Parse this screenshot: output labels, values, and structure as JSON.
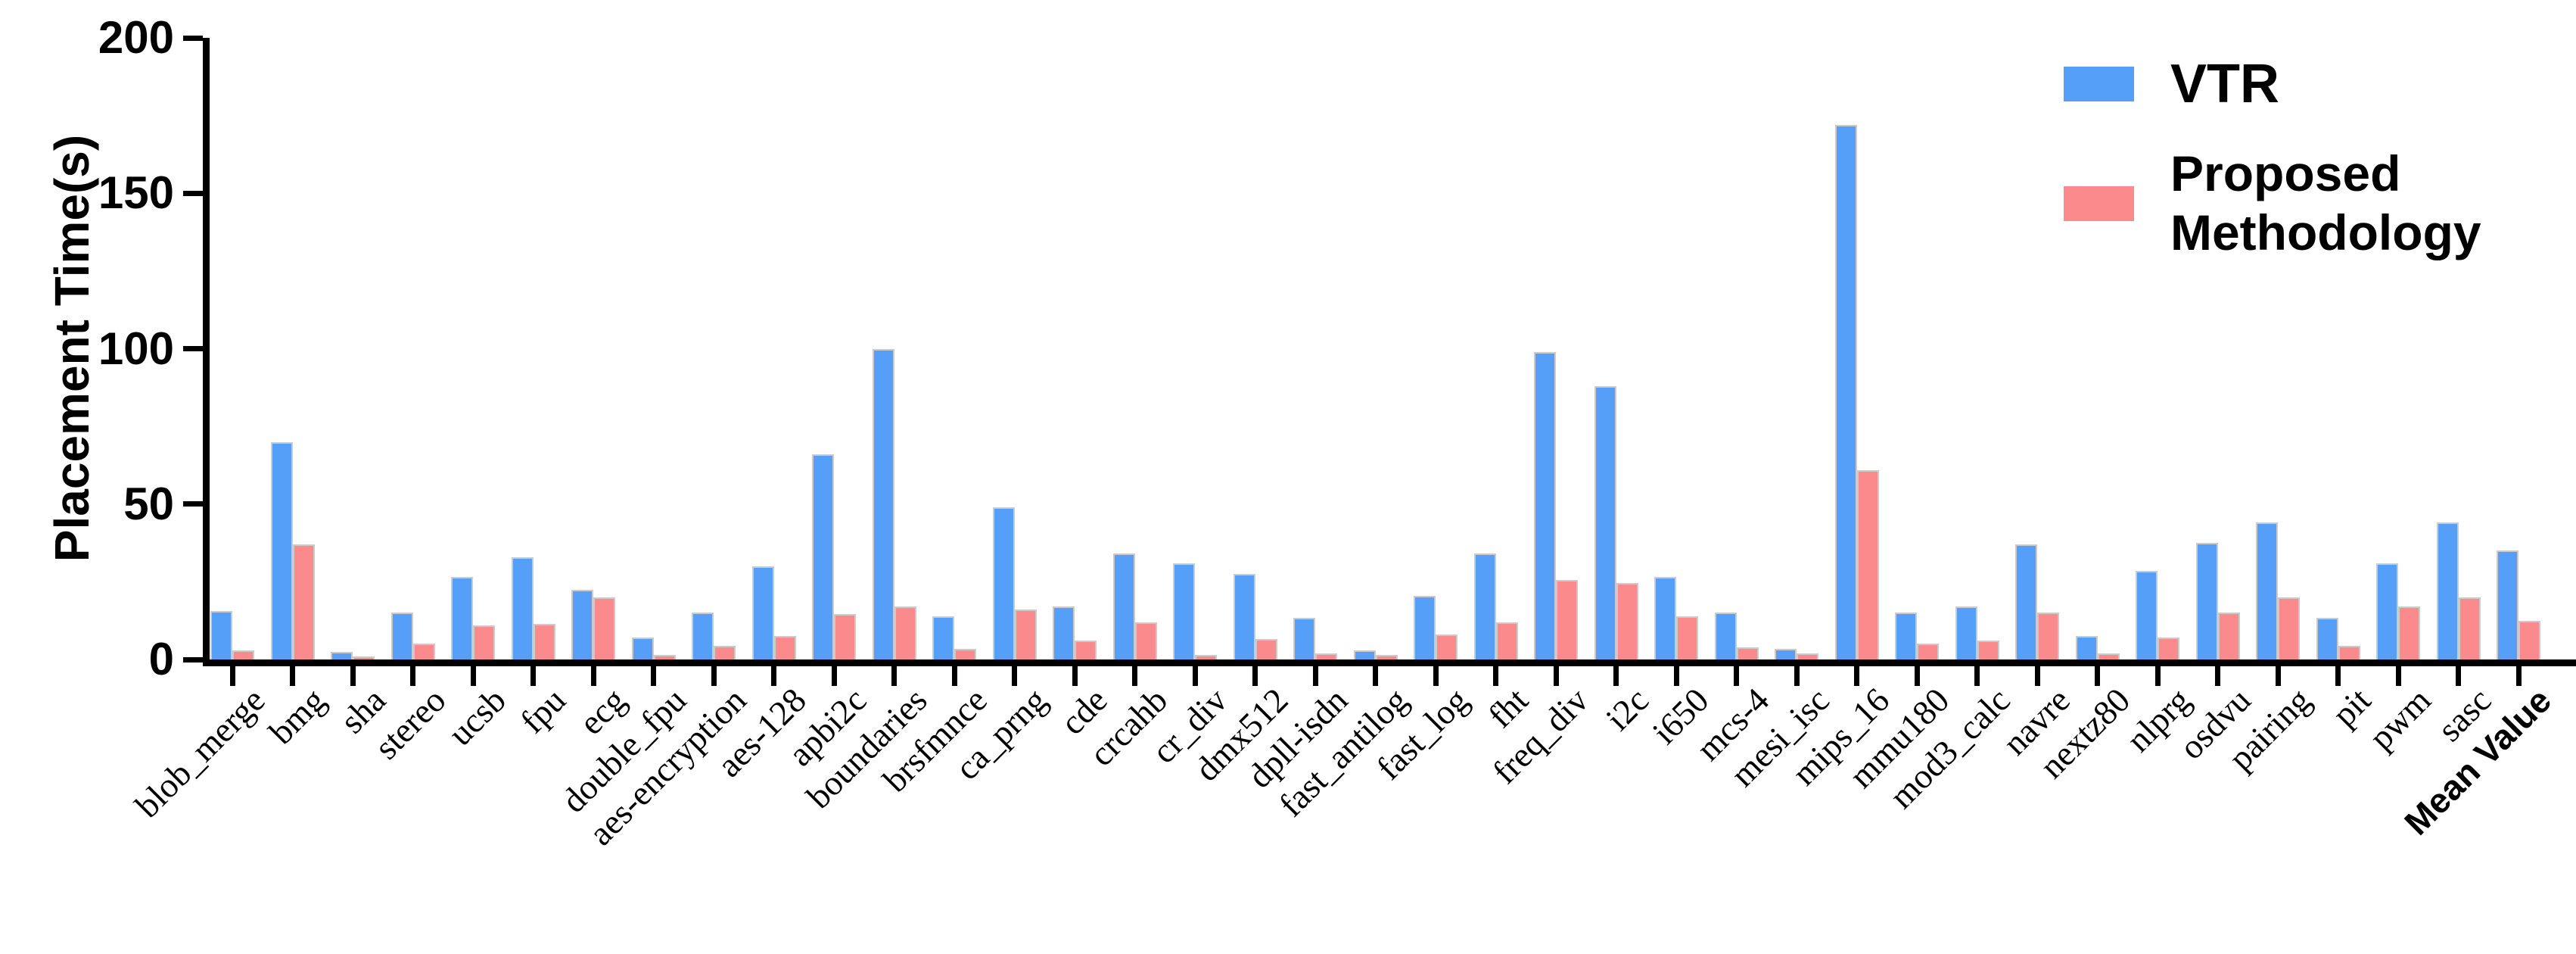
{
  "chart_data": {
    "type": "bar",
    "title": "",
    "xlabel": "",
    "ylabel": "Placement Time(s)",
    "ylim": [
      0,
      200
    ],
    "y_ticks": [
      0,
      50,
      100,
      150,
      200
    ],
    "grid": false,
    "legend_position": "upper right",
    "background_color": "#ffffff",
    "axis_color": "#000000",
    "bar_edge_color": "#cbcbcb",
    "categories": [
      "blob_merge",
      "bmg",
      "sha",
      "stereo",
      "ucsb",
      "fpu",
      "ecg",
      "double_fpu",
      "aes-encryption",
      "aes-128",
      "apbi2c",
      "boundaries",
      "brsfmnce",
      "ca_prng",
      "cde",
      "crcahb",
      "cr_div",
      "dmx512",
      "dpll-isdn",
      "fast_antilog",
      "fast_log",
      "fht",
      "freq_div",
      "i2c",
      "i650",
      "mcs-4",
      "mesi_isc",
      "mips_16",
      "mmu180",
      "mod3_calc",
      "navre",
      "nextz80",
      "nlprg",
      "osdvu",
      "pairing",
      "pit",
      "pwm",
      "sasc",
      "Mean Value"
    ],
    "series": [
      {
        "name": "VTR",
        "color": "#559FF8",
        "values": [
          15.5,
          70,
          2.5,
          15,
          26.5,
          33,
          22.5,
          7,
          15,
          30,
          66,
          100,
          14,
          49,
          17,
          34,
          31,
          27.5,
          13.5,
          3,
          20.5,
          34,
          99,
          88,
          26.5,
          15,
          3.5,
          172,
          15,
          17,
          37,
          7.5,
          28.5,
          37.5,
          44,
          13.5,
          31,
          44,
          35
        ]
      },
      {
        "name": "Proposed Methodology",
        "color": "#FA8A8C",
        "values": [
          3,
          37,
          1,
          5,
          11,
          11.5,
          20,
          1.5,
          4.5,
          7.5,
          14.5,
          17,
          3.5,
          16,
          6,
          12,
          1.5,
          6.5,
          2,
          1.5,
          8,
          12,
          25.5,
          24.5,
          14,
          4,
          2,
          61,
          5,
          6,
          15,
          2,
          7,
          15,
          20,
          4.5,
          17,
          20,
          12.5
        ]
      }
    ],
    "emphasized_category": "Mean Value"
  }
}
